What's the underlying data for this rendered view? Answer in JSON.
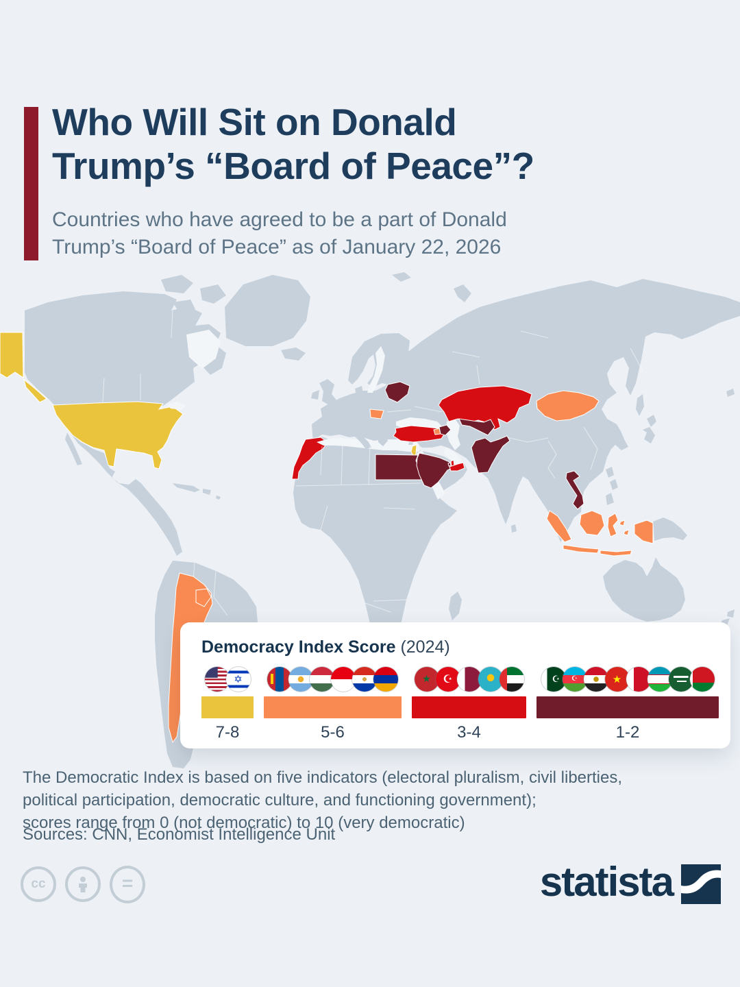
{
  "page": {
    "background": "#edf1f6"
  },
  "header": {
    "accent_color": "#8e1b2b",
    "title_line1": "Who Will Sit on Donald",
    "title_line2": "Trump’s “Board of Peace”?",
    "subtitle_line1": "Countries who have agreed to be a part of Donald",
    "subtitle_line2": "Trump’s “Board of Peace” as of January 22, 2026"
  },
  "legend": {
    "title": "Democracy Index Score",
    "year_suffix": "(2024)",
    "groups": [
      {
        "label": "7-8",
        "color": "#e9c43c",
        "flags": [
          {
            "name": "United States",
            "code": "us"
          },
          {
            "name": "Israel",
            "code": "il"
          }
        ]
      },
      {
        "label": "5-6",
        "color": "#f98b52",
        "flags": [
          {
            "name": "Mongolia",
            "code": "mn"
          },
          {
            "name": "Argentina",
            "code": "ar"
          },
          {
            "name": "Hungary",
            "code": "hu"
          },
          {
            "name": "Indonesia",
            "code": "id"
          },
          {
            "name": "Paraguay",
            "code": "py"
          },
          {
            "name": "Armenia",
            "code": "am"
          }
        ]
      },
      {
        "label": "3-4",
        "color": "#d60d13",
        "flags": [
          {
            "name": "Morocco",
            "code": "ma"
          },
          {
            "name": "Turkey",
            "code": "tr"
          },
          {
            "name": "Qatar",
            "code": "qa"
          },
          {
            "name": "Kazakhstan",
            "code": "kz"
          },
          {
            "name": "United Arab Emirates",
            "code": "ae"
          }
        ]
      },
      {
        "label": "1-2",
        "color": "#701c2b",
        "flags": [
          {
            "name": "Pakistan",
            "code": "pk"
          },
          {
            "name": "Azerbaijan",
            "code": "az"
          },
          {
            "name": "Egypt",
            "code": "eg"
          },
          {
            "name": "Vietnam",
            "code": "vn"
          },
          {
            "name": "Bahrain",
            "code": "bh"
          },
          {
            "name": "Uzbekistan",
            "code": "uz"
          },
          {
            "name": "Saudi Arabia",
            "code": "sa"
          },
          {
            "name": "Belarus",
            "code": "by"
          }
        ]
      }
    ]
  },
  "map": {
    "base_color": "#c7d1db",
    "sea_color": "#f2f6f9",
    "countries": {
      "united-states": "7-8",
      "israel": "7-8",
      "mongolia": "5-6",
      "argentina": "5-6",
      "hungary": "5-6",
      "indonesia": "5-6",
      "paraguay": "5-6",
      "armenia": "5-6",
      "morocco": "3-4",
      "turkey": "3-4",
      "qatar": "3-4",
      "kazakhstan": "3-4",
      "united-arab-emirates": "3-4",
      "pakistan": "1-2",
      "azerbaijan": "1-2",
      "egypt": "1-2",
      "vietnam": "1-2",
      "bahrain": "1-2",
      "uzbekistan": "1-2",
      "saudi-arabia": "1-2",
      "belarus": "1-2"
    }
  },
  "footnote": {
    "line1": "The Democratic Index is based on five indicators (electoral pluralism, civil liberties,",
    "line2": "political participation, democratic culture, and functioning government);",
    "line3": "scores range from 0 (not democratic) to 10 (very democratic)"
  },
  "sources": "Sources: CNN, Economist Intelligence Unit",
  "branding": {
    "logo_text": "statista",
    "logo_color": "#17344f"
  },
  "license": {
    "icons": [
      "cc",
      "attribution",
      "equal"
    ],
    "cc_label": "cc"
  }
}
